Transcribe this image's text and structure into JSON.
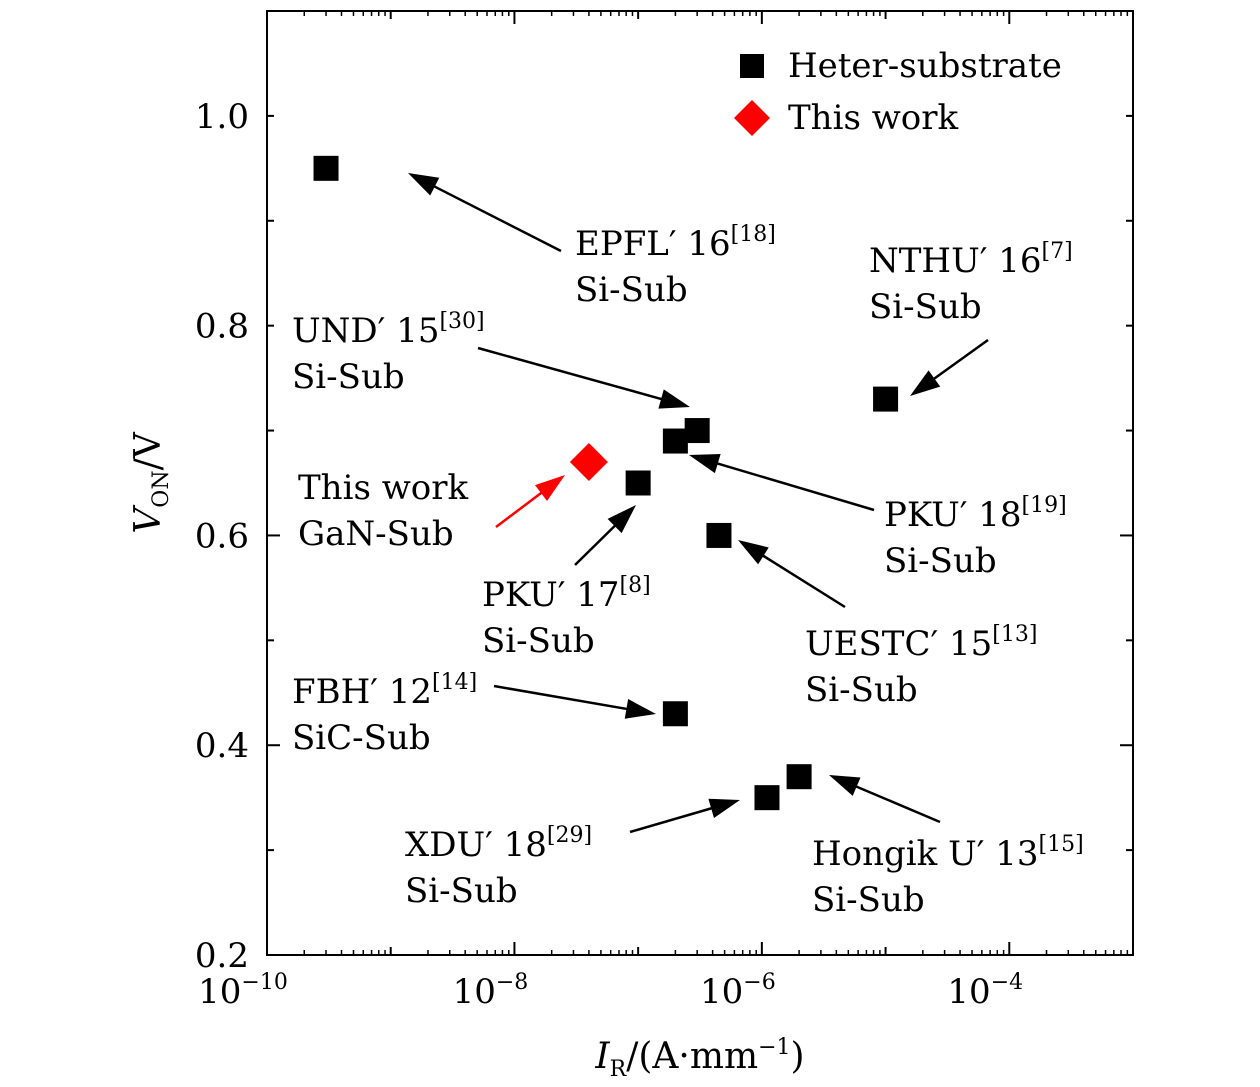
{
  "chart_data": {
    "type": "scatter",
    "xscale": "log",
    "xlim": [
      1e-10,
      0.001
    ],
    "ylim": [
      0.2,
      1.1
    ],
    "xticks": [
      {
        "value": 1e-10,
        "base": "10",
        "exp": "−10"
      },
      {
        "value": 1e-08,
        "base": "10",
        "exp": "−8"
      },
      {
        "value": 1e-06,
        "base": "10",
        "exp": "−6"
      },
      {
        "value": 0.0001,
        "base": "10",
        "exp": "−4"
      }
    ],
    "yticks": [
      {
        "value": 0.2,
        "label": "0.2"
      },
      {
        "value": 0.4,
        "label": "0.4"
      },
      {
        "value": 0.6,
        "label": "0.6"
      },
      {
        "value": 0.8,
        "label": "0.8"
      },
      {
        "value": 1.0,
        "label": "1.0"
      }
    ],
    "xlabel": {
      "main": "I",
      "sub": "R",
      "rest": "/(A·mm",
      "sup": "−1",
      "end": ")"
    },
    "ylabel": {
      "main": "V",
      "sub": "ON",
      "rest": "/V"
    },
    "legend": {
      "position": "top-right",
      "entries": [
        {
          "label": "Heter-substrate",
          "marker": "square",
          "color": "#000000"
        },
        {
          "label": "This work",
          "marker": "diamond",
          "color": "#ff0000"
        }
      ]
    },
    "colors": {
      "si_sub": "#1a1adc",
      "sic_sub": "#f08c1e",
      "this_work": "#ff0000",
      "heter": "#000000"
    },
    "series": [
      {
        "name": "Heter-substrate",
        "marker": "square",
        "points": [
          {
            "x": 3e-10,
            "y": 0.95
          },
          {
            "x": 1e-05,
            "y": 0.73
          },
          {
            "x": 3e-07,
            "y": 0.7
          },
          {
            "x": 2e-07,
            "y": 0.69
          },
          {
            "x": 1e-07,
            "y": 0.65
          },
          {
            "x": 4.5e-07,
            "y": 0.6
          },
          {
            "x": 2e-07,
            "y": 0.43
          },
          {
            "x": 1.1e-06,
            "y": 0.35
          },
          {
            "x": 2e-06,
            "y": 0.37
          }
        ]
      },
      {
        "name": "This work",
        "marker": "diamond",
        "points": [
          {
            "x": 4e-08,
            "y": 0.67
          }
        ]
      }
    ],
    "annotations": [
      {
        "name": "EPFL′ 16",
        "ref": "[18]",
        "substrate": "Si-Sub",
        "sub_color": "si_sub",
        "arrow_color": "heter"
      },
      {
        "name": "NTHU′ 16",
        "ref": "[7]",
        "substrate": "Si-Sub",
        "sub_color": "si_sub",
        "arrow_color": "heter"
      },
      {
        "name": "UND′ 15",
        "ref": "[30]",
        "substrate": "Si-Sub",
        "sub_color": "si_sub",
        "arrow_color": "heter"
      },
      {
        "name": "This work",
        "ref": "",
        "substrate": "GaN-Sub",
        "sub_color": "this_work",
        "name_color": "this_work",
        "arrow_color": "this_work"
      },
      {
        "name": "PKU′ 18",
        "ref": "[19]",
        "substrate": "Si-Sub",
        "sub_color": "si_sub",
        "arrow_color": "heter"
      },
      {
        "name": "PKU′ 17",
        "ref": "[8]",
        "substrate": "Si-Sub",
        "sub_color": "si_sub",
        "arrow_color": "heter"
      },
      {
        "name": "UESTC′ 15",
        "ref": "[13]",
        "substrate": "Si-Sub",
        "sub_color": "si_sub",
        "arrow_color": "heter"
      },
      {
        "name": "FBH′ 12",
        "ref": "[14]",
        "substrate": "SiC-Sub",
        "sub_color": "sic_sub",
        "arrow_color": "heter"
      },
      {
        "name": "XDU′ 18",
        "ref": "[29]",
        "substrate": "Si-Sub",
        "sub_color": "si_sub",
        "arrow_color": "heter"
      },
      {
        "name": "Hongik U′ 13",
        "ref": "[15]",
        "substrate": "Si-Sub",
        "sub_color": "si_sub",
        "arrow_color": "heter"
      }
    ]
  }
}
